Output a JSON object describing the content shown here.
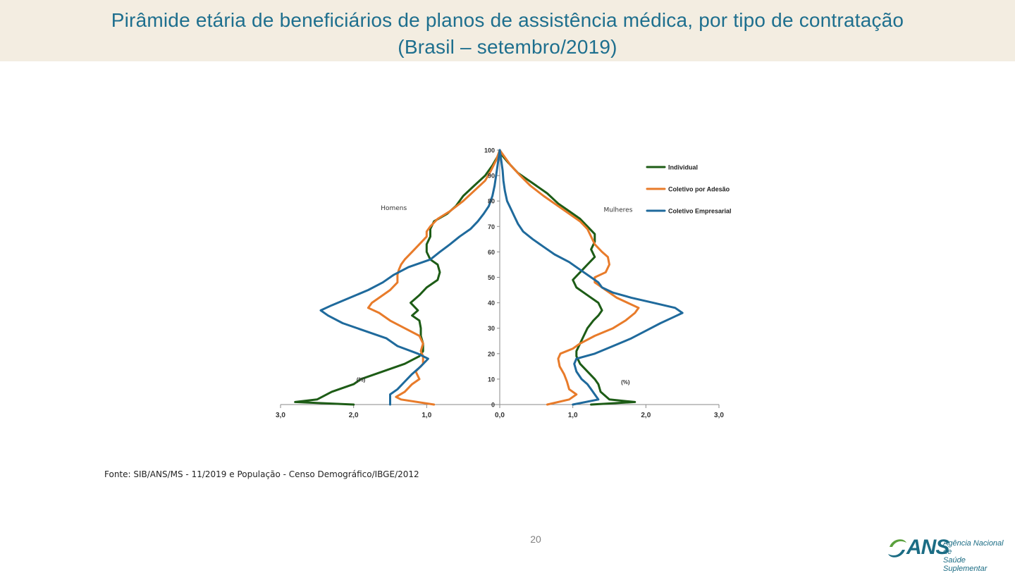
{
  "title": {
    "line1": "Pirâmide etária de beneficiários de planos de assistência médica, por tipo de contratação",
    "line2": "(Brasil – setembro/2019)"
  },
  "chart_data": {
    "type": "line",
    "orientation": "population-pyramid",
    "title": "",
    "side_labels": {
      "left": "Homens",
      "right": "Mulheres"
    },
    "unit_labels": {
      "left": "(%)",
      "right": "(%)"
    },
    "x_ticks": [
      "3,0",
      "2,0",
      "1,0",
      "0,0",
      "1,0",
      "2,0",
      "3,0"
    ],
    "y_ticks": [
      "0",
      "10",
      "20",
      "30",
      "40",
      "50",
      "60",
      "70",
      "80",
      "90",
      "100"
    ],
    "xlim": [
      -3,
      3
    ],
    "ylim": [
      0,
      100
    ],
    "legend_position": "top-right",
    "series": [
      {
        "name": "Individual",
        "color": "#1d5c16",
        "men": [
          [
            0,
            2.0
          ],
          [
            1,
            2.8
          ],
          [
            2,
            2.5
          ],
          [
            5,
            2.3
          ],
          [
            8,
            2.0
          ],
          [
            10,
            1.9
          ],
          [
            13,
            1.6
          ],
          [
            16,
            1.3
          ],
          [
            19,
            1.1
          ],
          [
            21,
            1.05
          ],
          [
            24,
            1.05
          ],
          [
            27,
            1.08
          ],
          [
            30,
            1.08
          ],
          [
            33,
            1.1
          ],
          [
            35,
            1.2
          ],
          [
            37,
            1.12
          ],
          [
            40,
            1.22
          ],
          [
            43,
            1.1
          ],
          [
            46,
            1.0
          ],
          [
            49,
            0.85
          ],
          [
            52,
            0.82
          ],
          [
            55,
            0.85
          ],
          [
            57,
            0.95
          ],
          [
            60,
            1.0
          ],
          [
            63,
            1.0
          ],
          [
            66,
            0.95
          ],
          [
            69,
            0.95
          ],
          [
            72,
            0.9
          ],
          [
            75,
            0.72
          ],
          [
            78,
            0.6
          ],
          [
            82,
            0.5
          ],
          [
            86,
            0.35
          ],
          [
            90,
            0.2
          ],
          [
            94,
            0.1
          ],
          [
            98,
            0.02
          ],
          [
            100,
            0
          ]
        ],
        "women": [
          [
            0,
            1.25
          ],
          [
            1,
            1.85
          ],
          [
            2,
            1.5
          ],
          [
            5,
            1.38
          ],
          [
            8,
            1.35
          ],
          [
            10,
            1.3
          ],
          [
            13,
            1.2
          ],
          [
            16,
            1.1
          ],
          [
            19,
            1.05
          ],
          [
            21,
            1.05
          ],
          [
            24,
            1.1
          ],
          [
            27,
            1.15
          ],
          [
            30,
            1.2
          ],
          [
            33,
            1.28
          ],
          [
            35,
            1.35
          ],
          [
            37,
            1.4
          ],
          [
            40,
            1.35
          ],
          [
            43,
            1.2
          ],
          [
            46,
            1.05
          ],
          [
            49,
            1.0
          ],
          [
            52,
            1.1
          ],
          [
            55,
            1.2
          ],
          [
            58,
            1.3
          ],
          [
            61,
            1.25
          ],
          [
            64,
            1.3
          ],
          [
            67,
            1.3
          ],
          [
            70,
            1.2
          ],
          [
            73,
            1.1
          ],
          [
            76,
            0.95
          ],
          [
            79,
            0.8
          ],
          [
            83,
            0.65
          ],
          [
            87,
            0.45
          ],
          [
            91,
            0.25
          ],
          [
            95,
            0.12
          ],
          [
            98,
            0.03
          ],
          [
            100,
            0
          ]
        ]
      },
      {
        "name": "Coletivo por Adesão",
        "color": "#e87b2a",
        "men": [
          [
            0,
            0.9
          ],
          [
            2,
            1.35
          ],
          [
            3,
            1.42
          ],
          [
            5,
            1.3
          ],
          [
            8,
            1.2
          ],
          [
            10,
            1.1
          ],
          [
            13,
            1.15
          ],
          [
            16,
            1.05
          ],
          [
            19,
            1.05
          ],
          [
            21,
            1.08
          ],
          [
            24,
            1.05
          ],
          [
            27,
            1.1
          ],
          [
            30,
            1.3
          ],
          [
            33,
            1.5
          ],
          [
            36,
            1.65
          ],
          [
            38,
            1.8
          ],
          [
            40,
            1.75
          ],
          [
            42,
            1.65
          ],
          [
            45,
            1.5
          ],
          [
            48,
            1.4
          ],
          [
            51,
            1.4
          ],
          [
            53,
            1.38
          ],
          [
            55,
            1.35
          ],
          [
            57,
            1.3
          ],
          [
            60,
            1.2
          ],
          [
            63,
            1.1
          ],
          [
            66,
            1.0
          ],
          [
            68,
            1.0
          ],
          [
            70,
            0.95
          ],
          [
            73,
            0.85
          ],
          [
            76,
            0.68
          ],
          [
            80,
            0.5
          ],
          [
            84,
            0.35
          ],
          [
            88,
            0.2
          ],
          [
            92,
            0.12
          ],
          [
            96,
            0.05
          ],
          [
            100,
            0
          ]
        ],
        "women": [
          [
            0,
            0.65
          ],
          [
            2,
            0.95
          ],
          [
            4,
            1.05
          ],
          [
            6,
            0.95
          ],
          [
            9,
            0.92
          ],
          [
            12,
            0.88
          ],
          [
            15,
            0.82
          ],
          [
            18,
            0.8
          ],
          [
            20,
            0.83
          ],
          [
            22,
            1.0
          ],
          [
            24,
            1.1
          ],
          [
            27,
            1.3
          ],
          [
            30,
            1.55
          ],
          [
            33,
            1.72
          ],
          [
            36,
            1.85
          ],
          [
            38,
            1.9
          ],
          [
            40,
            1.75
          ],
          [
            42,
            1.6
          ],
          [
            45,
            1.45
          ],
          [
            48,
            1.3
          ],
          [
            50,
            1.3
          ],
          [
            52,
            1.45
          ],
          [
            55,
            1.5
          ],
          [
            58,
            1.48
          ],
          [
            60,
            1.4
          ],
          [
            63,
            1.3
          ],
          [
            66,
            1.25
          ],
          [
            69,
            1.2
          ],
          [
            72,
            1.1
          ],
          [
            75,
            0.95
          ],
          [
            78,
            0.8
          ],
          [
            82,
            0.6
          ],
          [
            86,
            0.42
          ],
          [
            90,
            0.28
          ],
          [
            94,
            0.15
          ],
          [
            98,
            0.05
          ],
          [
            100,
            0
          ]
        ]
      },
      {
        "name": "Coletivo Empresarial",
        "color": "#1f6a9c",
        "men": [
          [
            0,
            1.5
          ],
          [
            2,
            1.5
          ],
          [
            4,
            1.5
          ],
          [
            6,
            1.4
          ],
          [
            9,
            1.3
          ],
          [
            12,
            1.2
          ],
          [
            15,
            1.08
          ],
          [
            18,
            0.98
          ],
          [
            20,
            1.12
          ],
          [
            23,
            1.4
          ],
          [
            26,
            1.55
          ],
          [
            29,
            1.85
          ],
          [
            32,
            2.15
          ],
          [
            35,
            2.35
          ],
          [
            37,
            2.45
          ],
          [
            39,
            2.3
          ],
          [
            42,
            2.05
          ],
          [
            45,
            1.8
          ],
          [
            48,
            1.6
          ],
          [
            51,
            1.45
          ],
          [
            54,
            1.25
          ],
          [
            57,
            0.95
          ],
          [
            60,
            0.82
          ],
          [
            63,
            0.68
          ],
          [
            66,
            0.55
          ],
          [
            69,
            0.4
          ],
          [
            72,
            0.3
          ],
          [
            75,
            0.22
          ],
          [
            78,
            0.15
          ],
          [
            82,
            0.1
          ],
          [
            86,
            0.07
          ],
          [
            90,
            0.05
          ],
          [
            94,
            0.03
          ],
          [
            98,
            0.01
          ],
          [
            100,
            0
          ]
        ],
        "women": [
          [
            0,
            1.0
          ],
          [
            2,
            1.35
          ],
          [
            4,
            1.3
          ],
          [
            6,
            1.25
          ],
          [
            8,
            1.2
          ],
          [
            10,
            1.12
          ],
          [
            13,
            1.05
          ],
          [
            16,
            1.02
          ],
          [
            18,
            1.05
          ],
          [
            20,
            1.3
          ],
          [
            23,
            1.55
          ],
          [
            26,
            1.8
          ],
          [
            29,
            2.0
          ],
          [
            32,
            2.2
          ],
          [
            34,
            2.35
          ],
          [
            36,
            2.5
          ],
          [
            38,
            2.4
          ],
          [
            40,
            2.1
          ],
          [
            42,
            1.8
          ],
          [
            44,
            1.55
          ],
          [
            46,
            1.4
          ],
          [
            48,
            1.35
          ],
          [
            50,
            1.25
          ],
          [
            53,
            1.1
          ],
          [
            56,
            0.95
          ],
          [
            59,
            0.75
          ],
          [
            62,
            0.6
          ],
          [
            65,
            0.45
          ],
          [
            68,
            0.32
          ],
          [
            71,
            0.25
          ],
          [
            74,
            0.2
          ],
          [
            77,
            0.15
          ],
          [
            80,
            0.1
          ],
          [
            84,
            0.07
          ],
          [
            88,
            0.05
          ],
          [
            92,
            0.04
          ],
          [
            96,
            0.02
          ],
          [
            100,
            0
          ]
        ]
      }
    ]
  },
  "source": "Fonte: SIB/ANS/MS - 11/2019 e População - Censo Demográfico/IBGE/2012",
  "page_number": "20",
  "logo": {
    "acronym": "ANS",
    "line1": "Agência Nacional de",
    "line2": "Saúde Suplementar",
    "color": "#1b6c84",
    "accent": "#5aa03c"
  }
}
